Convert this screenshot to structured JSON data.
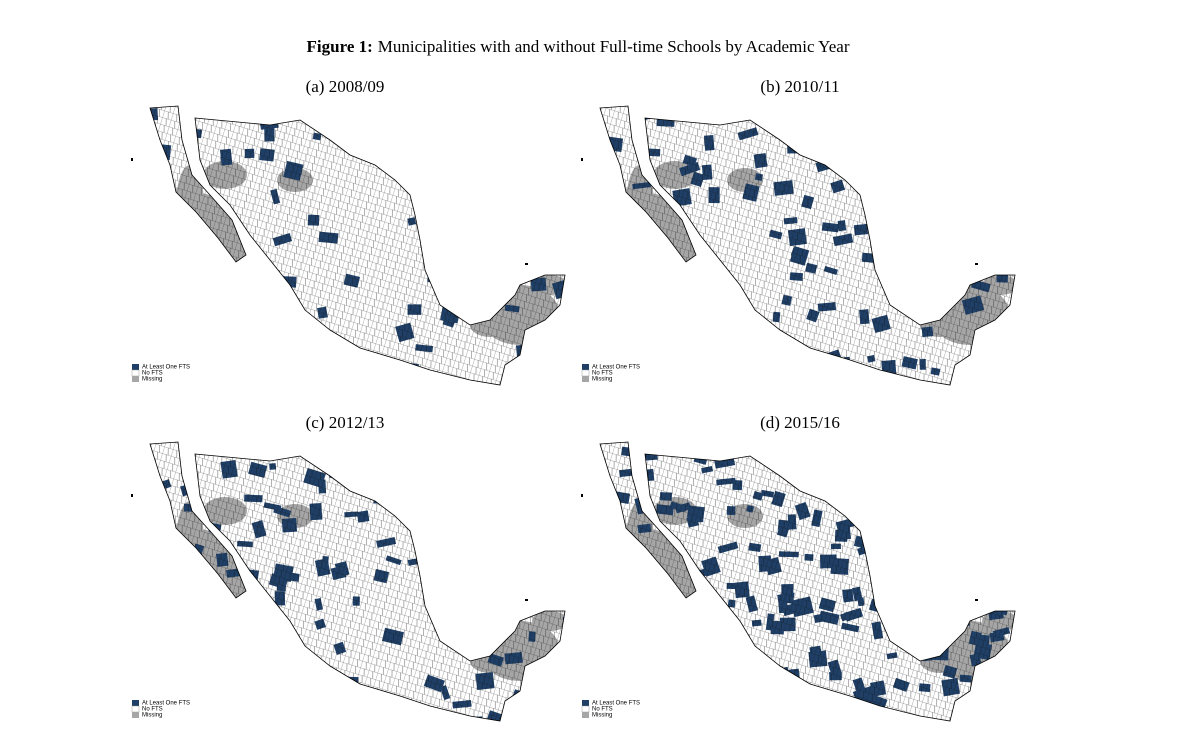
{
  "figure": {
    "label": "Figure 1:",
    "caption": "Municipalities with and without Full-time Schools by Academic Year"
  },
  "legend": [
    "At Least One FTS",
    "No FTS",
    "Missing"
  ],
  "panels": [
    {
      "label": "(a) 2008/09"
    },
    {
      "label": "(b) 2010/11"
    },
    {
      "label": "(c) 2012/13"
    },
    {
      "label": "(d) 2015/16"
    }
  ]
}
